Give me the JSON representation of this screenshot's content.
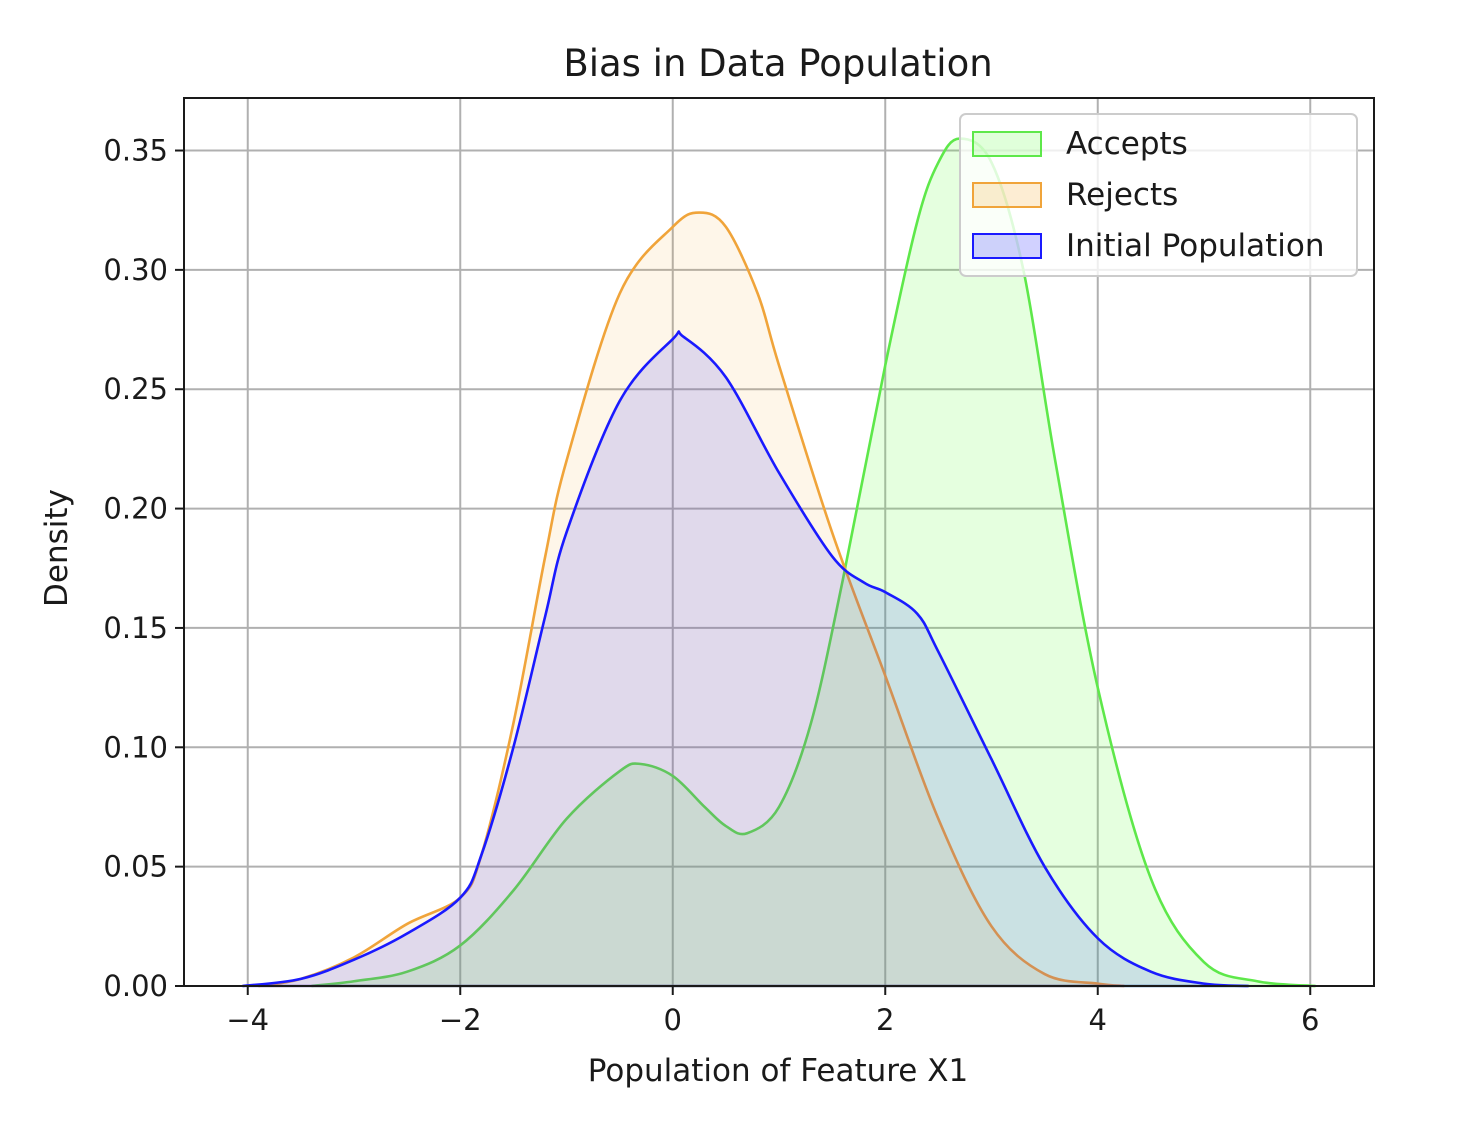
{
  "chart_data": {
    "type": "area",
    "title": "Bias in Data Population",
    "xlabel": "Population of Feature X1",
    "ylabel": "Density",
    "xlim": [
      -4.6,
      6.6
    ],
    "ylim": [
      0,
      0.372
    ],
    "xticks": [
      -4,
      -2,
      0,
      2,
      4,
      6
    ],
    "xtick_labels": [
      "−4",
      "−2",
      "0",
      "2",
      "4",
      "6"
    ],
    "yticks": [
      0,
      0.05,
      0.1,
      0.15,
      0.2,
      0.25,
      0.3,
      0.35
    ],
    "ytick_labels": [
      "0.00",
      "0.05",
      "0.10",
      "0.15",
      "0.20",
      "0.25",
      "0.30",
      "0.35"
    ],
    "grid": true,
    "legend_position": "top-right",
    "series": [
      {
        "name": "Accepts",
        "color": "#66ff44",
        "line_color": "#5ee84a",
        "fill_opacity": 0.17,
        "x": [
          -3.4,
          -3.0,
          -2.5,
          -2.0,
          -1.5,
          -1.0,
          -0.5,
          -0.3,
          0.0,
          0.3,
          0.5,
          0.7,
          1.0,
          1.3,
          1.6,
          2.0,
          2.3,
          2.5,
          2.7,
          3.0,
          3.3,
          3.6,
          4.0,
          4.5,
          5.0,
          5.5,
          6.05
        ],
        "y": [
          0.0,
          0.002,
          0.006,
          0.017,
          0.04,
          0.07,
          0.09,
          0.093,
          0.088,
          0.075,
          0.067,
          0.064,
          0.075,
          0.11,
          0.17,
          0.26,
          0.32,
          0.345,
          0.355,
          0.345,
          0.3,
          0.22,
          0.125,
          0.045,
          0.01,
          0.002,
          0.0
        ]
      },
      {
        "name": "Rejects",
        "color": "#f5a623",
        "line_color": "#f0a43a",
        "fill_opacity": 0.1,
        "x": [
          -3.9,
          -3.5,
          -3.0,
          -2.5,
          -2.0,
          -1.8,
          -1.5,
          -1.2,
          -1.0,
          -0.5,
          0.0,
          0.25,
          0.5,
          0.8,
          1.0,
          1.5,
          2.0,
          2.5,
          3.0,
          3.5,
          4.0,
          4.25
        ],
        "y": [
          0.0,
          0.003,
          0.012,
          0.026,
          0.037,
          0.055,
          0.11,
          0.18,
          0.22,
          0.29,
          0.318,
          0.324,
          0.318,
          0.29,
          0.26,
          0.19,
          0.13,
          0.07,
          0.025,
          0.005,
          0.001,
          0.0
        ]
      },
      {
        "name": "Initial Population",
        "color": "#1a1aff",
        "line_color": "#1a1aff",
        "fill_opacity": 0.13,
        "x": [
          -4.05,
          -3.5,
          -3.0,
          -2.5,
          -2.0,
          -1.8,
          -1.5,
          -1.2,
          -1.0,
          -0.5,
          0.0,
          0.1,
          0.5,
          1.0,
          1.5,
          1.8,
          2.0,
          2.3,
          2.5,
          3.0,
          3.5,
          4.0,
          4.5,
          5.0,
          5.42
        ],
        "y": [
          0.0,
          0.003,
          0.011,
          0.022,
          0.037,
          0.055,
          0.1,
          0.155,
          0.19,
          0.245,
          0.271,
          0.272,
          0.255,
          0.215,
          0.18,
          0.169,
          0.165,
          0.156,
          0.14,
          0.095,
          0.05,
          0.02,
          0.006,
          0.001,
          0.0
        ]
      }
    ]
  }
}
